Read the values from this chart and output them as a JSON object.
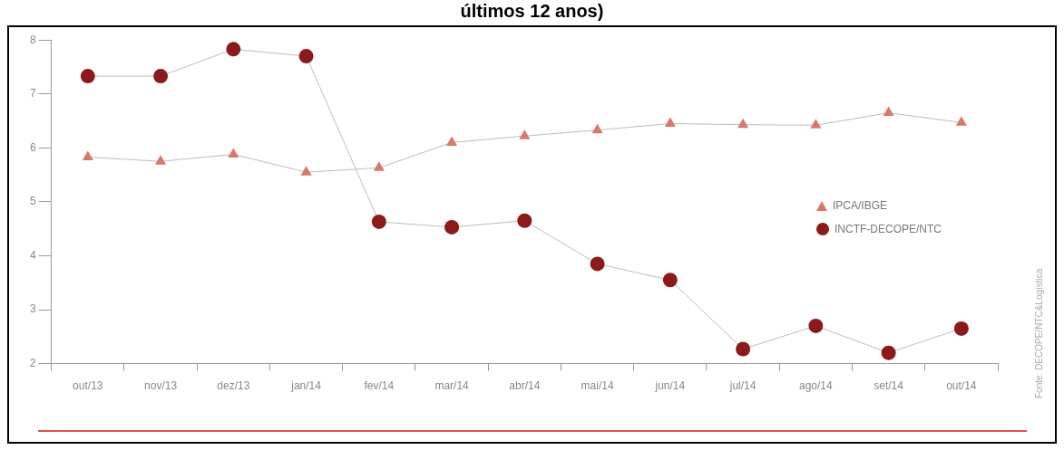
{
  "chart_data": {
    "type": "line",
    "title": "últimos 12 anos)",
    "categories": [
      "out/13",
      "nov/13",
      "dez/13",
      "jan/14",
      "fev/14",
      "mar/14",
      "abr/14",
      "mai/14",
      "jun/14",
      "jul/14",
      "ago/14",
      "set/14",
      "out/14"
    ],
    "series": [
      {
        "name": "IPCA/IBGE",
        "color": "#d9786a",
        "marker": "triangle",
        "values": [
          5.83,
          5.75,
          5.88,
          5.55,
          5.63,
          6.1,
          6.22,
          6.33,
          6.45,
          6.43,
          6.42,
          6.65,
          6.47
        ]
      },
      {
        "name": "INCTF-DECOPE/NTC",
        "color": "#8b1a1a",
        "marker": "circle",
        "values": [
          7.33,
          7.33,
          7.83,
          7.7,
          4.63,
          4.53,
          4.65,
          3.85,
          3.55,
          2.27,
          2.7,
          2.2,
          2.65
        ]
      }
    ],
    "ylim": [
      2,
      8
    ],
    "yticks": [
      2,
      3,
      4,
      5,
      6,
      7,
      8
    ],
    "grid": false,
    "legend": "right",
    "line_style": "solid",
    "annotations": [
      "Fonte: DECOPE/NTC&Logística"
    ]
  }
}
